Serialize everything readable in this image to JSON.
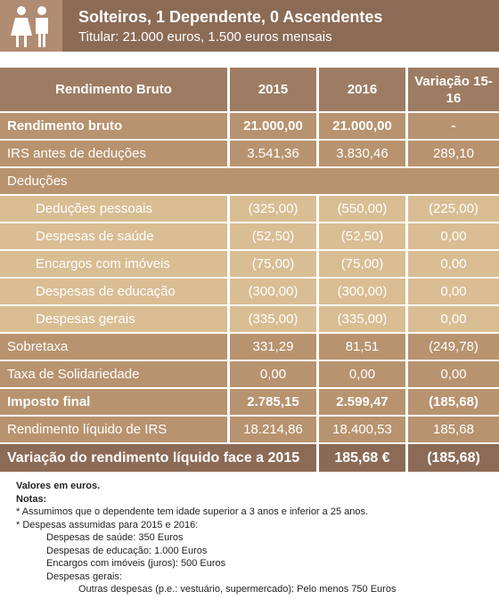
{
  "header": {
    "title": "Solteiros, 1 Dependente, 0 Ascendentes",
    "subtitle": "Titular: 21.000 euros, 1.500 euros mensais"
  },
  "table": {
    "columns": [
      "Rendimento Bruto",
      "2015",
      "2016",
      "Variação 15-16"
    ],
    "rows": [
      [
        "Rendimento bruto",
        "21.000,00",
        "21.000,00",
        "-"
      ],
      [
        "IRS antes de deduções",
        "3.541,36",
        "3.830,46",
        "289,10"
      ],
      [
        "Deduções"
      ],
      [
        "Deduções pessoais",
        "(325,00)",
        "(550,00)",
        "(225,00)"
      ],
      [
        "Despesas de saúde",
        "(52,50)",
        "(52,50)",
        "0,00"
      ],
      [
        "Encargos com imóveis",
        "(75,00)",
        "(75,00)",
        "0,00"
      ],
      [
        "Despesas de educação",
        "(300,00)",
        "(300,00)",
        "0,00"
      ],
      [
        "Despesas gerais",
        "(335,00)",
        "(335,00)",
        "0,00"
      ],
      [
        "Sobretaxa",
        "331,29",
        "81,51",
        "(249,78)"
      ],
      [
        "Taxa de Solidariedade",
        "0,00",
        "0,00",
        "0,00"
      ],
      [
        "Imposto final",
        "2.785,15",
        "2.599,47",
        "(185,68)"
      ],
      [
        "Rendimento líquido de IRS",
        "18.214,86",
        "18.400,53",
        "185,68"
      ]
    ],
    "total": [
      "Variação do rendimento líquido face a 2015",
      "185,68 €",
      "(185,68)"
    ]
  },
  "notes": {
    "lines": [
      "Valores em euros.",
      "Notas:",
      "* Assumimos que o dependente tem idade superior a 3 anos e inferior a 25 anos.",
      "* Despesas assumidas para 2015 e 2016:",
      "Despesas de saúde: 350 Euros",
      "Despesas de educação: 1.000 Euros",
      "Encargos com imóveis (juros): 500 Euros",
      "Despesas gerais:",
      "Outras despesas (p.e.: vestuário, supermercado): Pelo menos 750 Euros"
    ]
  }
}
